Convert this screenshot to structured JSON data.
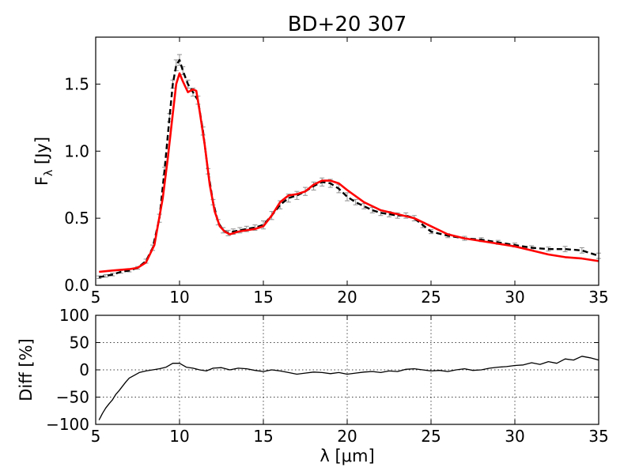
{
  "chart_data": [
    {
      "type": "line",
      "title": "BD+20 307",
      "xlabel": "",
      "ylabel": "F",
      "ylabel_sub": "λ",
      "ylabel_unit": " [Jy]",
      "xlim": [
        5,
        35
      ],
      "ylim": [
        0,
        1.85
      ],
      "xticks": [
        5,
        10,
        15,
        20,
        25,
        30,
        35
      ],
      "xtick_labels": [
        "5",
        "10",
        "15",
        "20",
        "25",
        "30",
        "35"
      ],
      "yticks": [
        0.0,
        0.5,
        1.0,
        1.5
      ],
      "ytick_labels": [
        "0.0",
        "0.5",
        "1.0",
        "1.5"
      ],
      "grid": false,
      "legend": "none",
      "series": [
        {
          "style": "dashed-with-errorbars",
          "color": "#000000",
          "errorbar_color": "#909090",
          "x": [
            5.2,
            5.6,
            6.0,
            6.5,
            7.0,
            7.5,
            8.0,
            8.4,
            8.8,
            9.1,
            9.4,
            9.6,
            9.8,
            10.0,
            10.2,
            10.5,
            10.8,
            11.1,
            11.4,
            11.7,
            12.0,
            12.3,
            12.6,
            12.9,
            13.2,
            13.6,
            14.0,
            14.5,
            15.0,
            15.5,
            16.0,
            16.5,
            17.0,
            17.5,
            18.0,
            18.5,
            19.0,
            19.5,
            20.0,
            20.5,
            21.0,
            21.5,
            22.0,
            22.5,
            23.0,
            23.5,
            24.0,
            24.5,
            25.0,
            26.0,
            27.0,
            28.0,
            29.0,
            30.0,
            31.0,
            32.0,
            33.0,
            34.0,
            35.0
          ],
          "y": [
            0.06,
            0.07,
            0.08,
            0.1,
            0.11,
            0.13,
            0.18,
            0.28,
            0.5,
            0.85,
            1.25,
            1.5,
            1.64,
            1.68,
            1.6,
            1.5,
            1.44,
            1.38,
            1.15,
            0.85,
            0.62,
            0.47,
            0.41,
            0.39,
            0.4,
            0.41,
            0.42,
            0.43,
            0.45,
            0.52,
            0.6,
            0.65,
            0.67,
            0.7,
            0.74,
            0.77,
            0.76,
            0.72,
            0.66,
            0.62,
            0.59,
            0.56,
            0.54,
            0.53,
            0.52,
            0.52,
            0.5,
            0.45,
            0.4,
            0.37,
            0.35,
            0.34,
            0.32,
            0.3,
            0.28,
            0.27,
            0.27,
            0.26,
            0.22
          ],
          "errors": [
            0.01,
            0.01,
            0.01,
            0.01,
            0.01,
            0.01,
            0.015,
            0.02,
            0.03,
            0.03,
            0.03,
            0.03,
            0.04,
            0.04,
            0.03,
            0.03,
            0.03,
            0.03,
            0.03,
            0.02,
            0.02,
            0.02,
            0.02,
            0.02,
            0.02,
            0.02,
            0.02,
            0.02,
            0.03,
            0.03,
            0.03,
            0.03,
            0.03,
            0.03,
            0.03,
            0.03,
            0.03,
            0.03,
            0.03,
            0.02,
            0.02,
            0.02,
            0.02,
            0.02,
            0.02,
            0.02,
            0.02,
            0.02,
            0.015,
            0.015,
            0.015,
            0.015,
            0.015,
            0.015,
            0.015,
            0.015,
            0.02,
            0.02,
            0.02
          ]
        },
        {
          "style": "solid",
          "color": "#ff0000",
          "x": [
            5.2,
            6.0,
            7.0,
            7.5,
            8.0,
            8.5,
            9.0,
            9.3,
            9.6,
            9.8,
            10.0,
            10.2,
            10.5,
            10.8,
            11.0,
            11.2,
            11.5,
            11.8,
            12.1,
            12.4,
            12.7,
            13.0,
            13.5,
            14.0,
            14.5,
            15.0,
            15.5,
            16.0,
            16.5,
            17.0,
            17.5,
            18.0,
            18.5,
            19.0,
            19.5,
            20.0,
            21.0,
            22.0,
            23.0,
            24.0,
            25.0,
            26.0,
            27.0,
            28.0,
            29.0,
            30.0,
            31.0,
            32.0,
            33.0,
            34.0,
            35.0
          ],
          "y": [
            0.1,
            0.11,
            0.12,
            0.13,
            0.17,
            0.3,
            0.65,
            0.95,
            1.28,
            1.5,
            1.58,
            1.52,
            1.44,
            1.46,
            1.45,
            1.3,
            1.05,
            0.75,
            0.55,
            0.44,
            0.4,
            0.38,
            0.4,
            0.41,
            0.42,
            0.44,
            0.52,
            0.62,
            0.67,
            0.68,
            0.7,
            0.75,
            0.78,
            0.78,
            0.76,
            0.71,
            0.62,
            0.56,
            0.53,
            0.5,
            0.44,
            0.38,
            0.35,
            0.33,
            0.31,
            0.29,
            0.26,
            0.23,
            0.21,
            0.2,
            0.18
          ]
        }
      ]
    },
    {
      "type": "line",
      "title": "",
      "xlabel": "λ [μm]",
      "ylabel": "Diff [%]",
      "xlim": [
        5,
        35
      ],
      "ylim": [
        -100,
        100
      ],
      "xticks": [
        5,
        10,
        15,
        20,
        25,
        30,
        35
      ],
      "xtick_labels": [
        "5",
        "10",
        "15",
        "20",
        "25",
        "30",
        "35"
      ],
      "yticks": [
        -100,
        -50,
        0,
        50,
        100
      ],
      "ytick_labels": [
        "−100",
        "−50",
        "0",
        "50",
        "100"
      ],
      "grid": true,
      "legend": "none",
      "series": [
        {
          "style": "solid",
          "color": "#000000",
          "x": [
            5.2,
            5.4,
            5.6,
            5.8,
            6.0,
            6.2,
            6.4,
            6.6,
            6.8,
            7.0,
            7.3,
            7.6,
            8.0,
            8.4,
            8.8,
            9.2,
            9.6,
            10.0,
            10.4,
            10.8,
            11.2,
            11.6,
            12.0,
            12.5,
            13.0,
            13.5,
            14.0,
            14.5,
            15.0,
            15.5,
            16.0,
            16.5,
            17.0,
            17.5,
            18.0,
            18.5,
            19.0,
            19.5,
            20.0,
            20.5,
            21.0,
            21.5,
            22.0,
            22.5,
            23.0,
            23.5,
            24.0,
            24.5,
            25.0,
            25.5,
            26.0,
            26.5,
            27.0,
            27.5,
            28.0,
            28.5,
            29.0,
            29.5,
            30.0,
            30.5,
            31.0,
            31.5,
            32.0,
            32.5,
            33.0,
            33.5,
            34.0,
            34.5,
            35.0
          ],
          "y": [
            -92,
            -80,
            -70,
            -62,
            -55,
            -45,
            -38,
            -30,
            -22,
            -15,
            -10,
            -5,
            -2,
            0,
            2,
            5,
            12,
            12,
            5,
            3,
            0,
            -2,
            3,
            4,
            0,
            3,
            2,
            -1,
            -3,
            0,
            -2,
            -5,
            -8,
            -6,
            -4,
            -5,
            -7,
            -5,
            -8,
            -6,
            -4,
            -3,
            -5,
            -2,
            -3,
            1,
            2,
            0,
            -2,
            -1,
            -3,
            0,
            2,
            -1,
            0,
            3,
            5,
            6,
            8,
            9,
            13,
            10,
            15,
            12,
            20,
            18,
            25,
            22,
            18
          ]
        }
      ]
    }
  ]
}
